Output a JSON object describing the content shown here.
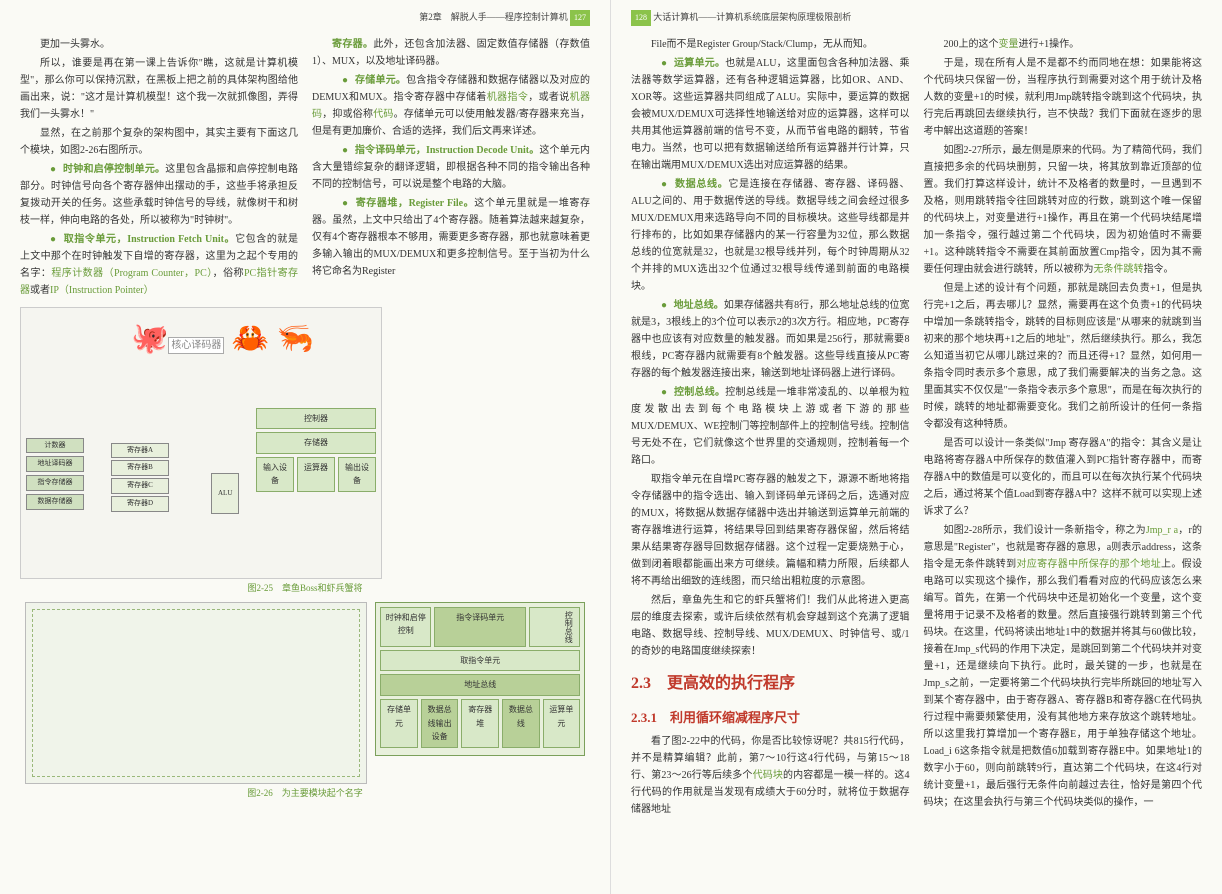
{
  "header": {
    "left_chapter": "第2章　解脱人手——程序控制计算机",
    "right_book": "大话计算机——计算机系统底层架构原理极限剖析",
    "left_page_num": "127",
    "right_page_num": "128"
  },
  "left_page": {
    "col1": {
      "p1": "更加一头雾水。",
      "p2": "所以，谁要是再在第一课上告诉你\"瞧，这就是计算机模型\"，那么你可以保持沉默，在黑板上把之前的具体架构图给他画出来，说：\"这才是计算机模型！这个我一次就抓像图，弄得我们一头雾水！\"",
      "p3": "显然，在之前那个复杂的架构图中，其实主要有下面这几个模块，如图2-26右图所示。",
      "p4_pre": "",
      "p4_term": "时钟和启停控制单元。",
      "p4_post": "这里包含晶振和启停控制电路部分。时钟信号向各个寄存器伸出摆动的手，这些手将承担反复拨动开关的任务。这些承载时钟信号的导线，就像树干和树枝一样，伸向电路的各处，所以被称为\"时钟树\"。",
      "p5_term": "取指令单元，Instruction Fetch Unit。",
      "p5_post": "它包含的就是上文中那个在时钟触发下自增的寄存器，这里为之起个专用的名字：",
      "p5_pc": "程序计数器（Program Counter，PC）",
      "p5_mid": "，俗称",
      "p5_ip": "PC指针寄存器",
      "p5_or": "或者",
      "p5_ip2": "IP（Instruction Pointer）"
    },
    "col2": {
      "p1_term": "寄存器。",
      "p1_post": "此外，还包含加法器、固定数值存储器（存数值1）、MUX，以及地址译码器。",
      "p2_term": "存储单元。",
      "p2_post": "包含指令存储器和数据存储器以及对应的DEMUX和MUX。指令寄存器中存储着",
      "p2_mi": "机器指令",
      "p2_mid": "，或者说",
      "p2_mc": "机器码",
      "p2_mid2": "，抑或俗称",
      "p2_code": "代码",
      "p2_post2": "。存储单元可以使用触发器/寄存器来充当，但是有更加廉价、合适的选择，我们后文再来详述。",
      "p3_term": "指令译码单元，Instruction Decode Unit。",
      "p3_post": "这个单元内含大量错综复杂的翻译逻辑，即根据各种不同的指令输出各种不同的控制信号，可以说是整个电路的大脑。",
      "p4_term": "寄存器堆，Register File。",
      "p4_post": "这个单元里就是一堆寄存器。虽然，上文中只给出了4个寄存器。随着算法越来越复杂，仅有4个寄存器根本不够用，需要更多寄存器，那也就意味着更多输入输出的MUX/DEMUX和更多控制信号。至于当初为什么将它命名为Register"
    },
    "fig225": {
      "caption": "图2-25　章鱼Boss和虾兵蟹将",
      "core_decoder": "核心译码器",
      "counter": "计数器",
      "addr_decoder": "地址译码器",
      "instr_store": "指令存储器",
      "data_store": "数据存储器",
      "regA": "寄存器A",
      "regB": "寄存器B",
      "regC": "寄存器C",
      "regD": "寄存器D",
      "alu": "ALU",
      "controller": "控制器",
      "storage": "存储器",
      "input_dev": "输入设备",
      "calc": "运算器",
      "output_dev": "输出设备"
    },
    "fig226": {
      "caption": "图2-26　为主要模块起个名字",
      "clock_ctrl": "时钟和启停控制",
      "instr_decode": "指令译码单元",
      "fetch": "取指令单元",
      "addr_bus": "地址总线",
      "ctrl_bus": "控制总线",
      "storage": "存储单元",
      "data_bus_in": "数据总线输出设备",
      "reg_file": "寄存器堆",
      "data_bus": "数据总线",
      "calc_unit": "运算单元"
    }
  },
  "right_page": {
    "col1": {
      "p1": "File而不是Register Group/Stack/Clump，无从而知。",
      "p2_term": "运算单元。",
      "p2_post": "也就是ALU，这里面包含各种加法器、乘法器等数学运算器，还有各种逻辑运算器，比如OR、AND、XOR等。这些运算器共同组成了ALU。实际中，要运算的数据会被MUX/DEMUX可选择性地输送给对应的运算器，这样可以共用其他运算器前端的信号不变，从而节省电路的翻转，节省电力。当然，也可以把有数据输送给所有运算器并行计算，只在输出端用MUX/DEMUX选出对应运算器的结果。",
      "p3_term": "数据总线。",
      "p3_post": "它是连接在存储器、寄存器、译码器、ALU之间的、用于数据传送的导线。数据导线之间会经过很多MUX/DEMUX用来选路导向不同的目标模块。这些导线都是并行排布的，比如如果存储器内的某一行容量为32位，那么数据总线的位宽就是32，也就是32根导线并列，每个时钟周期从32个并排的MUX选出32个位通过32根导线传递到前面的电路模块。",
      "p4_term": "地址总线。",
      "p4_post": "如果存储器共有8行，那么地址总线的位宽就是3，3根线上的3个位可以表示2的3次方行。相应地，PC寄存器中也应该有对应数量的触发器。而如果是256行，那就需要8根线，PC寄存器内就需要有8个触发器。这些导线直接从PC寄存器的每个触发器连接出来，输送到地址译码器上进行译码。",
      "p5_term": "控制总线。",
      "p5_post": "控制总线是一堆非常凌乱的、以单根为粒度发散出去到每个电路模块上游或者下游的那些MUX/DEMUX、WE控制门等控制部件上的控制信号线。控制信号无处不在，它们就像这个世界里的交通规则，控制着每一个路口。",
      "p6": "取指令单元在自增PC寄存器的触发之下，源源不断地将指令存储器中的指令选出、输入到译码单元译码之后，选通对应的MUX，将数据从数据存储器中选出并输送到运算单元前端的寄存器堆进行运算，将结果导回到结果寄存器保留，然后将结果从结果寄存器导回数据存储器。这个过程一定要烧熟于心，做到闭着眼都能画出来方可继续。篇幅和精力所限，后续都人将不再给出细致的连线图，而只给出粗粒度的示意图。",
      "p7": "然后，章鱼先生和它的虾兵蟹将们！我们从此将进入更高层的维度去探索，或许后续依然有机会穿越到这个充满了逻辑电路、数据导线、控制导线、MUX/DEMUX、时钟信号、或/1的奇妙的电路国度继续探索！",
      "sec23": "2.3　更高效的执行程序",
      "sec231": "2.3.1　利用循环缩减程序尺寸",
      "p8_pre": "看了图2-22中的代码，你是否比较惊讶呢？共815行代码，并不是精算编辑？此前，第7～10行这4行代码，与第15～18行、第23～26行等后续多个",
      "p8_code": "代码块",
      "p8_post": "的内容都是一模一样的。这4行代码的作用就是当发现有成绩大于60分时，就将位于数据存储器地址"
    },
    "col2": {
      "p1_pre": "200上的这个",
      "p1_var": "变量",
      "p1_post": "进行+1操作。",
      "p2": "于是，现在所有人是不是都不约而同地在想：如果能将这个代码块只保留一份，当程序执行到需要对这个用于统计及格人数的变量+1的时候，就利用Jmp跳转指令跳到这个代码块，执行完后再跳回去继续执行，岂不快哉？我们下面就在逐步的思考中解出这道题的答案！",
      "p3_pre": "如图2-27所示，最左侧是原来的代码。为了精简代码，我们直接把多余的代码块删剪，只留一块，将其放到靠近顶部的位置。我们打算这样设计，统计不及格者的数量时，一旦遇到不及格，则用跳转指令往回跳转对应的行数，跳到这个唯一保留的代码块上，对变量进行+1操作，再且在第一个代码块结尾增加一条指令，强行越过第二个代码块，因为初始值时不需要+1。这种跳转指令不需要在其前面放置Cmp指令，因为其不需要任何理由就会进行跳转，所以被称为",
      "p3_jmp": "无条件跳转",
      "p3_post": "指令。",
      "p4": "但是上述的设计有个问题，那就是跳回去负责+1，但是执行完+1之后，再去哪儿？显然，需要再在这个负责+1的代码块中增加一条跳转指令，跳转的目标则应该是\"从哪来的就跳到当初来的那个地块再+1之后的地址\"，然后继续执行。那么，我怎么知道当初它从哪儿跳过来的？而且还得+1？显然，如何用一条指令同时表示多个意思，成了我们需要解决的当务之急。这里面其实不仅仅是\"一条指令表示多个意思\"，而是在每次执行的时候，跳转的地址都需要变化。我们之前所设计的任何一条指令都没有这种特质。",
      "p5": "是否可以设计一条类似\"Jmp 寄存器A\"的指令：其含义是让电路将寄存器A中所保存的数值灌入到PC指针寄存器中，而寄存器A中的数值是可以变化的，而且可以在每次执行某个代码块之后，通过将某个值Load到寄存器A中？这样不就可以实现上述诉求了么？",
      "p6_pre": "如图2-28所示，我们设计一条新指令，称之为",
      "p6_jmpra": "Jmp_r a",
      "p6_mid": "，r的意思是\"Register\"，也就是寄存器的意思，a则表示address，这条指令是无条件跳转到",
      "p6_addr": "对应寄存器中所保存的那个地址",
      "p6_post": "上。假设电路可以实现这个操作，那么我们看看对应的代码应该怎么来编写。首先，在第一个代码块中还是初始化一个变量，这个变量将用于记录不及格者的数量。然后直接强行跳转到第三个代码块。在这里，代码将读出地址1中的数据并将其与60做比较，接着在Jmp_s代码的作用下决定，是跳回到第二个代码块并对变量+1，还是继续向下执行。此时，最关键的一步，也就是在Jmp_s之前，一定要将第二个代码块执行完毕所跳回的地址写入到某个寄存器中，由于寄存器A、寄存器B和寄存器C在代码执行过程中需要频繁使用，没有其他地方来存放这个跳转地址。所以这里我打算增加一个寄存器E，用于单独存储这个地址。Load_i 6这条指令就是把数值6加载到寄存器E中。如果地址1的数字小于60，则向前跳转9行，直达第二个代码块，在这4行对统计变量+1，最后强行无条件向前越过去往，恰好是第四个代码块；在这里会执行与第三个代码块类似的操作，一"
    }
  }
}
